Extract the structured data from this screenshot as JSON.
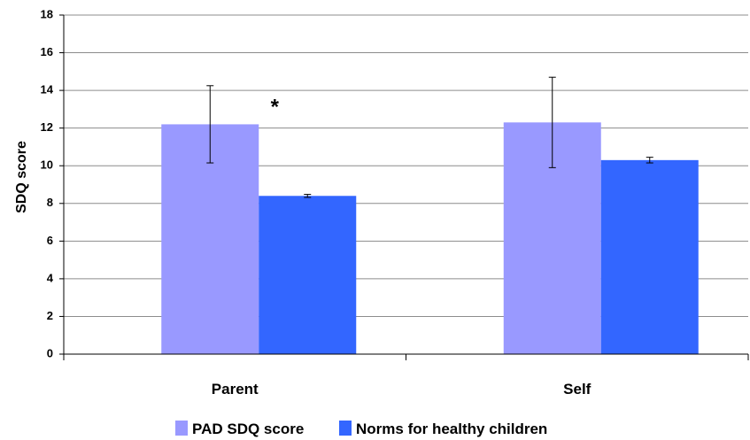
{
  "chart_data": {
    "type": "bar",
    "categories": [
      "Parent",
      "Self"
    ],
    "series": [
      {
        "name": "PAD SDQ score",
        "values": [
          12.2,
          12.3
        ],
        "error": [
          2.05,
          2.4
        ],
        "color": "#9999ff"
      },
      {
        "name": "Norms for healthy children",
        "values": [
          8.4,
          10.3
        ],
        "error": [
          0.08,
          0.15
        ],
        "color": "#3366ff"
      }
    ],
    "ylabel": "SDQ score",
    "xlabel": "",
    "title": "",
    "ylim": [
      0,
      18
    ],
    "yticks": [
      0,
      2,
      4,
      6,
      8,
      10,
      12,
      14,
      16,
      18
    ],
    "grid": true,
    "legend_position": "bottom",
    "annotations": [
      {
        "text": "*",
        "category": "Parent"
      }
    ]
  }
}
